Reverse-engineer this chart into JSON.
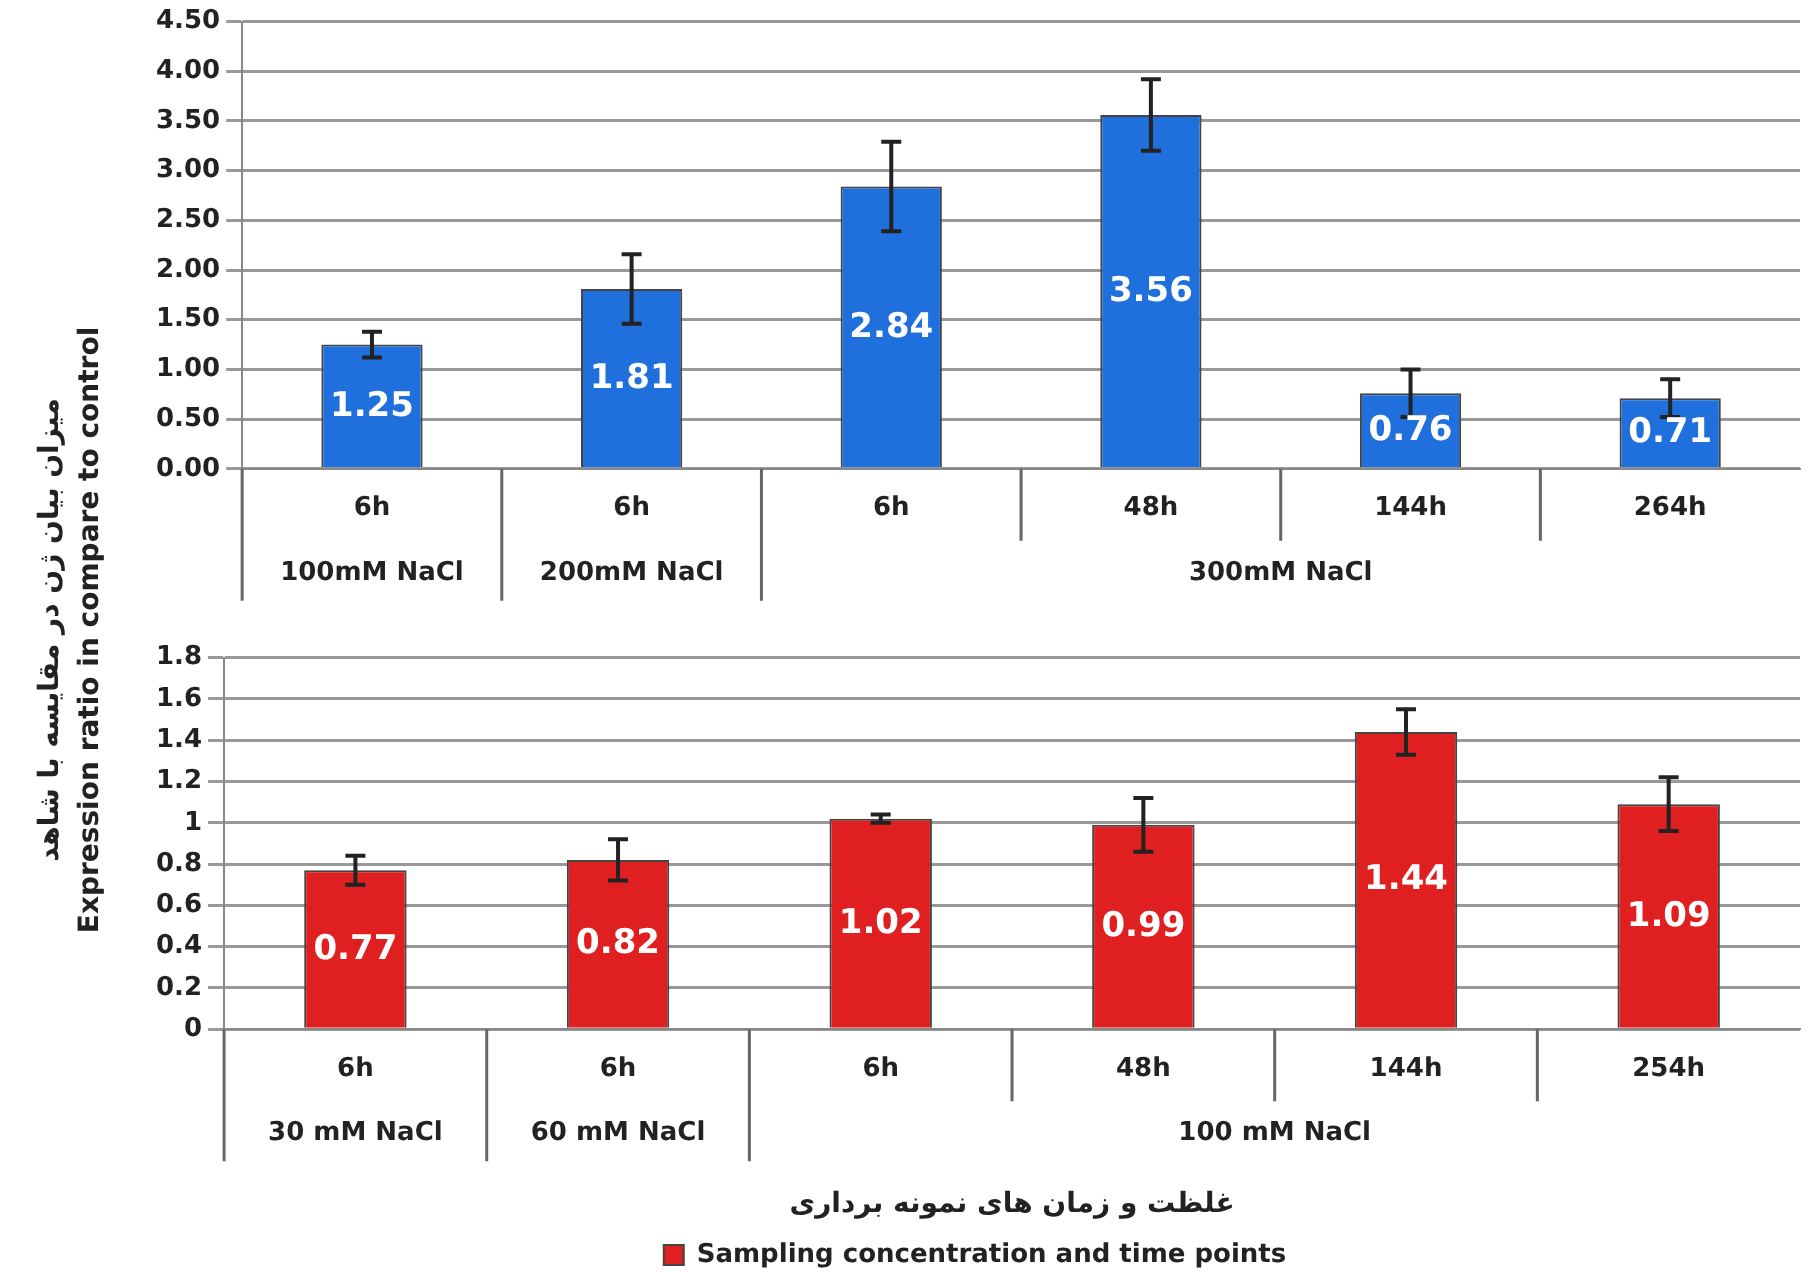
{
  "chart_data": [
    {
      "type": "bar",
      "ylabel": "میزان بیان ژن در مقایسه با شاهد\nExpression ratio in compare to control",
      "categories": [
        "6h",
        "6h",
        "6h",
        "48h",
        "144h",
        "264h"
      ],
      "series": [
        {
          "color": "#1f6fdc",
          "values": [
            1.25,
            1.81,
            2.84,
            3.56,
            0.76,
            0.71
          ],
          "errors": [
            0.13,
            0.35,
            0.45,
            0.36,
            0.24,
            0.19
          ]
        }
      ],
      "ylim": [
        0,
        4.5
      ],
      "yticks": [
        {
          "value": 0,
          "label": "0.00"
        },
        {
          "value": 0.5,
          "label": "0.50"
        },
        {
          "value": 1,
          "label": "1.00"
        },
        {
          "value": 1.5,
          "label": "1.50"
        },
        {
          "value": 2,
          "label": "2.00"
        },
        {
          "value": 2.5,
          "label": "2.50"
        },
        {
          "value": 3,
          "label": "3.00"
        },
        {
          "value": 3.5,
          "label": "3.50"
        },
        {
          "value": 4,
          "label": "4.00"
        },
        {
          "value": 4.5,
          "label": "4.50"
        }
      ],
      "grid": "y",
      "data_labels": true,
      "legend": false,
      "annotations": [
        "100mM NaCl",
        "200mM NaCl",
        "300mM NaCl"
      ]
    },
    {
      "type": "bar",
      "xlabel": "غلظت و زمان های نمونه برداری",
      "categories": [
        "6h",
        "6h",
        "6h",
        "48h",
        "144h",
        "254h"
      ],
      "series": [
        {
          "name": "Sampling concentration and time points",
          "color": "#e02020",
          "values": [
            0.77,
            0.82,
            1.02,
            0.99,
            1.44,
            1.09
          ],
          "errors": [
            0.07,
            0.1,
            0.02,
            0.13,
            0.11,
            0.13
          ]
        }
      ],
      "ylim": [
        0,
        1.8
      ],
      "yticks": [
        0,
        0.2,
        0.4,
        0.6,
        0.8,
        1,
        1.2,
        1.4,
        1.6,
        1.8
      ],
      "grid": "y",
      "data_labels": true,
      "legend": "bottom",
      "annotations": [
        "30 mM NaCl",
        "60 mM NaCl",
        "100 mM NaCl"
      ]
    }
  ]
}
